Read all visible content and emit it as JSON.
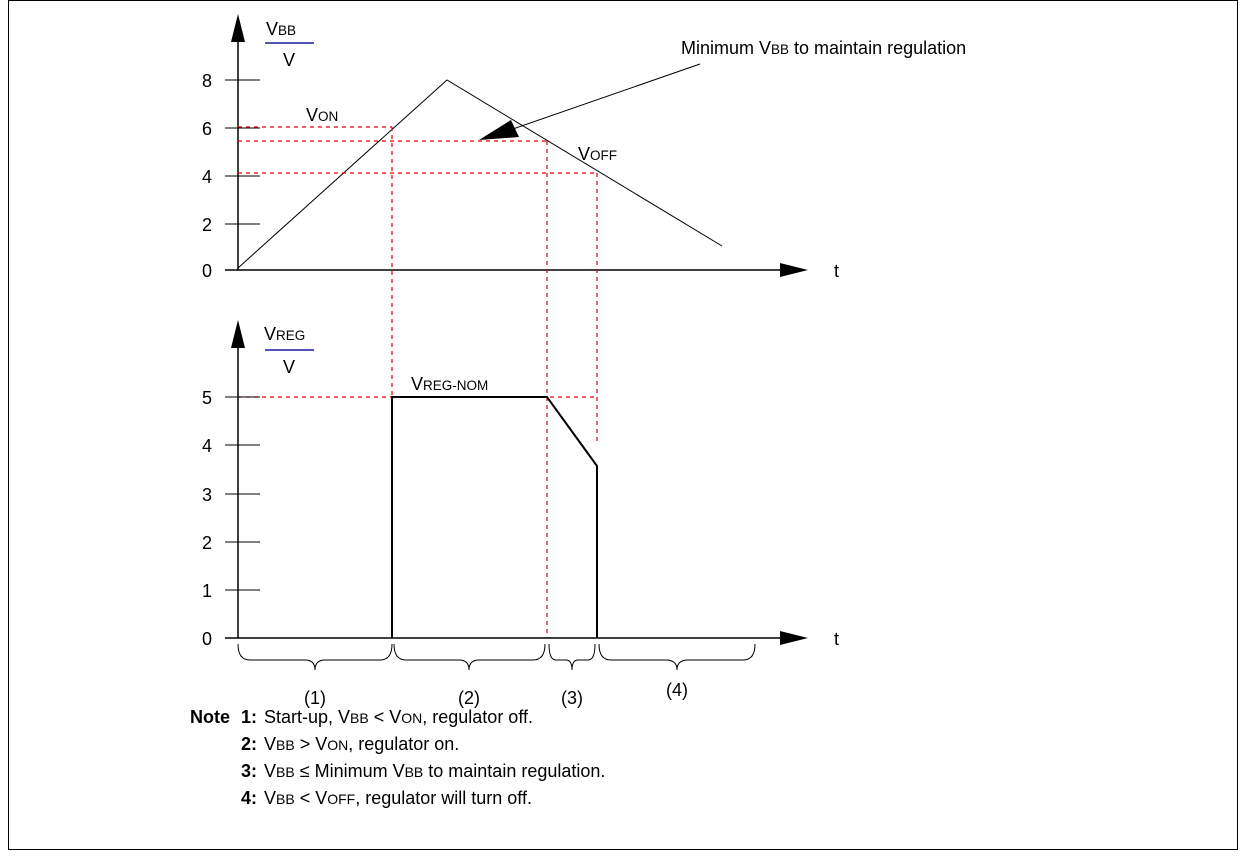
{
  "top_graph": {
    "y_axis": {
      "main": "V",
      "sub": "BB",
      "unit": "V",
      "ticks": [
        "0",
        "2",
        "4",
        "6",
        "8"
      ]
    },
    "x_label": "t",
    "von_label": {
      "main": "V",
      "sub": "ON"
    },
    "voff_label": {
      "main": "V",
      "sub": "OFF"
    },
    "callout": {
      "before": "Minimum V",
      "sub": "BB",
      "after": " to maintain regulation"
    }
  },
  "bottom_graph": {
    "y_axis": {
      "main": "V",
      "sub": "REG",
      "unit": "V",
      "ticks": [
        "0",
        "1",
        "2",
        "3",
        "4",
        "5"
      ]
    },
    "x_label": "t",
    "nominal_label": {
      "main": "V",
      "sub": "REG-NOM"
    }
  },
  "periods": [
    "(1)",
    "(2)",
    "(3)",
    "(4)"
  ],
  "notes": {
    "heading": "Note",
    "items": [
      {
        "num": "1:",
        "parts": [
          {
            "t": "Start-up, V"
          },
          {
            "t": "BB",
            "sc": true
          },
          {
            "t": " < V"
          },
          {
            "t": "ON",
            "sc": true
          },
          {
            "t": ", regulator off."
          }
        ]
      },
      {
        "num": "2:",
        "parts": [
          {
            "t": "V"
          },
          {
            "t": "BB",
            "sc": true
          },
          {
            "t": " > V"
          },
          {
            "t": "ON",
            "sc": true
          },
          {
            "t": ", regulator on."
          }
        ]
      },
      {
        "num": "3:",
        "parts": [
          {
            "t": "V"
          },
          {
            "t": "BB",
            "sc": true
          },
          {
            "t": " ≤  Minimum V"
          },
          {
            "t": "BB",
            "sc": true
          },
          {
            "t": " to maintain regulation."
          }
        ]
      },
      {
        "num": "4:",
        "parts": [
          {
            "t": "V"
          },
          {
            "t": "BB",
            "sc": true
          },
          {
            "t": " < V"
          },
          {
            "t": "OFF",
            "sc": true
          },
          {
            "t": ", regulator will turn off."
          }
        ]
      }
    ]
  },
  "colors": {
    "axis": "#000000",
    "guide": "#e00000",
    "unit_rule": "#1a1aa0"
  }
}
